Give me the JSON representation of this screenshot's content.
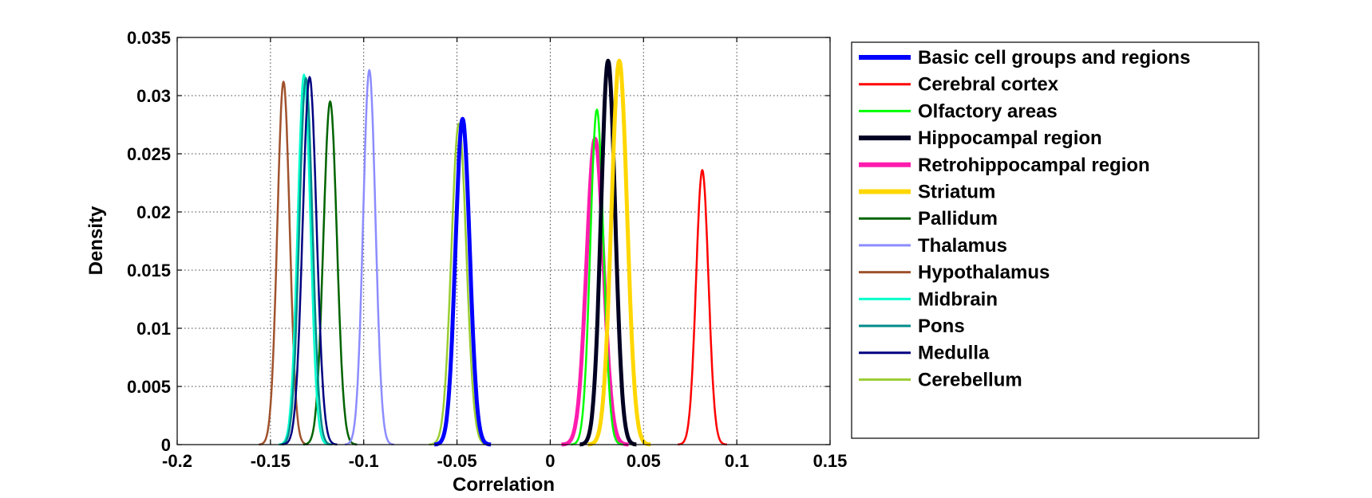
{
  "chart_data": {
    "type": "line",
    "xlabel": "Correlation",
    "ylabel": "Density",
    "xlim": [
      -0.2,
      0.15
    ],
    "ylim": [
      0,
      0.035
    ],
    "x_ticks": [
      -0.2,
      -0.15,
      -0.1,
      -0.05,
      0,
      0.05,
      0.1,
      0.15
    ],
    "x_tick_labels": [
      "-0.2",
      "-0.15",
      "-0.1",
      "-0.05",
      "0",
      "0.05",
      "0.1",
      "0.15"
    ],
    "y_ticks": [
      0,
      0.005,
      0.01,
      0.015,
      0.02,
      0.025,
      0.03,
      0.035
    ],
    "y_tick_labels": [
      "0",
      "0.005",
      "0.01",
      "0.015",
      "0.02",
      "0.025",
      "0.03",
      "0.035"
    ],
    "grid": true,
    "legend_position": "outside-right",
    "series": [
      {
        "name": "Basic cell groups and regions",
        "color": "#0000ff",
        "thick": true,
        "mean": -0.047,
        "sd": 0.0038,
        "peak": 0.028
      },
      {
        "name": "Cerebral cortex",
        "color": "#ff0000",
        "thick": false,
        "mean": 0.0815,
        "sd": 0.0033,
        "peak": 0.0236
      },
      {
        "name": "Olfactory areas",
        "color": "#00ff00",
        "thick": false,
        "mean": 0.025,
        "sd": 0.0035,
        "peak": 0.0288
      },
      {
        "name": "Hippocampal region",
        "color": "#000022",
        "thick": true,
        "mean": 0.031,
        "sd": 0.0038,
        "peak": 0.033
      },
      {
        "name": "Retrohippocampal region",
        "color": "#ff1cae",
        "thick": true,
        "mean": 0.024,
        "sd": 0.0045,
        "peak": 0.0263
      },
      {
        "name": "Striatum",
        "color": "#ffd700",
        "thick": true,
        "mean": 0.037,
        "sd": 0.0042,
        "peak": 0.033
      },
      {
        "name": "Pallidum",
        "color": "#006400",
        "thick": false,
        "mean": -0.118,
        "sd": 0.0036,
        "peak": 0.0295
      },
      {
        "name": "Thalamus",
        "color": "#8c8cff",
        "thick": false,
        "mean": -0.097,
        "sd": 0.0033,
        "peak": 0.0322
      },
      {
        "name": "Hypothalamus",
        "color": "#a0522d",
        "thick": false,
        "mean": -0.143,
        "sd": 0.0033,
        "peak": 0.0312
      },
      {
        "name": "Midbrain",
        "color": "#00ffcc",
        "thick": false,
        "mean": -0.132,
        "sd": 0.0034,
        "peak": 0.0318
      },
      {
        "name": "Pons",
        "color": "#008b8b",
        "thick": false,
        "mean": -0.131,
        "sd": 0.0035,
        "peak": 0.0315
      },
      {
        "name": "Medulla",
        "color": "#000080",
        "thick": false,
        "mean": -0.129,
        "sd": 0.0037,
        "peak": 0.0316
      },
      {
        "name": "Cerebellum",
        "color": "#9acd32",
        "thick": false,
        "mean": -0.049,
        "sd": 0.004,
        "peak": 0.0276
      }
    ]
  }
}
